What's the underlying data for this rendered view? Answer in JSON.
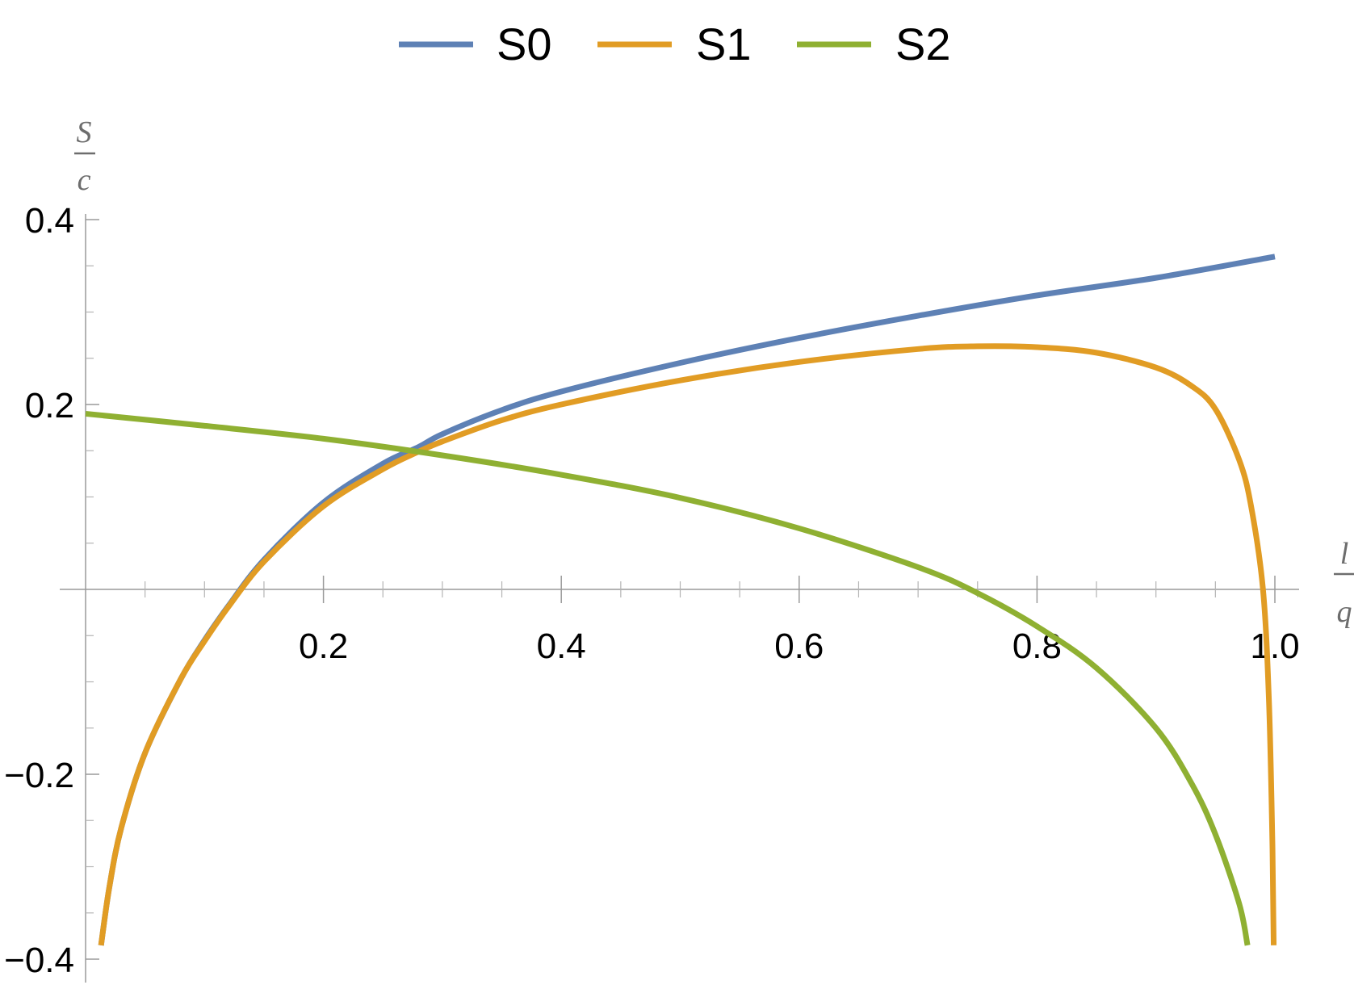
{
  "chart_data": {
    "type": "line",
    "xlabel": {
      "numerator": "l",
      "denominator": "q"
    },
    "ylabel": {
      "numerator": "S",
      "denominator": "c"
    },
    "xlim": [
      0,
      1.0
    ],
    "ylim": [
      -0.4,
      0.4
    ],
    "grid": false,
    "legend_position": "top-center",
    "x_ticks": [
      "0.2",
      "0.4",
      "0.6",
      "0.8",
      "1.0"
    ],
    "y_ticks": [
      "0.4",
      "0.2",
      "−0.2",
      "−0.4"
    ],
    "series": [
      {
        "name": "S0",
        "color": "#5e81b5",
        "x": [
          0.013,
          0.02,
          0.03,
          0.05,
          0.08,
          0.1,
          0.12,
          0.15,
          0.2,
          0.25,
          0.28,
          0.3,
          0.35,
          0.4,
          0.5,
          0.6,
          0.7,
          0.8,
          0.9,
          1.0
        ],
        "y": [
          -0.385,
          -0.322,
          -0.258,
          -0.177,
          -0.097,
          -0.055,
          -0.018,
          0.032,
          0.094,
          0.136,
          0.154,
          0.168,
          0.194,
          0.214,
          0.245,
          0.272,
          0.296,
          0.318,
          0.337,
          0.36
        ]
      },
      {
        "name": "S1",
        "color": "#e19c24",
        "x": [
          0.013,
          0.02,
          0.03,
          0.05,
          0.08,
          0.1,
          0.12,
          0.15,
          0.2,
          0.25,
          0.28,
          0.3,
          0.35,
          0.4,
          0.5,
          0.6,
          0.7,
          0.75,
          0.8,
          0.85,
          0.9,
          0.93,
          0.95,
          0.97,
          0.98,
          0.99,
          0.995,
          0.998,
          0.999
        ],
        "y": [
          -0.385,
          -0.322,
          -0.258,
          -0.177,
          -0.097,
          -0.056,
          -0.019,
          0.03,
          0.09,
          0.13,
          0.149,
          0.16,
          0.183,
          0.2,
          0.226,
          0.246,
          0.26,
          0.263,
          0.262,
          0.256,
          0.24,
          0.22,
          0.195,
          0.14,
          0.09,
          0.0,
          -0.12,
          -0.28,
          -0.385
        ]
      },
      {
        "name": "S2",
        "color": "#8fb032",
        "x": [
          0.0,
          0.1,
          0.2,
          0.3,
          0.4,
          0.5,
          0.6,
          0.7,
          0.75,
          0.8,
          0.85,
          0.9,
          0.93,
          0.95,
          0.97,
          0.977
        ],
        "y": [
          0.19,
          0.177,
          0.163,
          0.145,
          0.124,
          0.099,
          0.066,
          0.024,
          -0.004,
          -0.04,
          -0.085,
          -0.15,
          -0.21,
          -0.265,
          -0.34,
          -0.385
        ]
      }
    ]
  }
}
